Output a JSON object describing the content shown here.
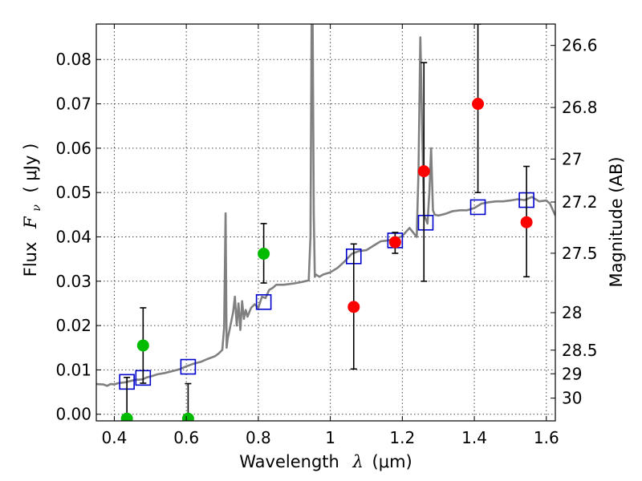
{
  "chart_data": {
    "type": "scatter",
    "xlabel_main": "Wavelength",
    "xlabel_symbol": "λ",
    "xlabel_unit": "(μm)",
    "ylabel_main": "Flux",
    "ylabel_symbol": "F",
    "ylabel_subscript": "ν",
    "ylabel_unit": "( μJy )",
    "y2label": "Magnitude (AB)",
    "xlim": [
      0.35,
      1.625
    ],
    "ylim": [
      -0.0015,
      0.088
    ],
    "grid": true,
    "x_ticks": [
      0.4,
      0.6,
      0.8,
      1.0,
      1.2,
      1.4,
      1.6
    ],
    "x_tick_labels": [
      "0.4",
      "0.6",
      "0.8",
      "1",
      "1.2",
      "1.4",
      "1.6"
    ],
    "y_ticks": [
      0.0,
      0.01,
      0.02,
      0.03,
      0.04,
      0.05,
      0.06,
      0.07,
      0.08
    ],
    "y_tick_labels": [
      "0.00",
      "0.01",
      "0.02",
      "0.03",
      "0.04",
      "0.05",
      "0.06",
      "0.07",
      "0.08"
    ],
    "mag_ticks": [
      26.6,
      26.8,
      27,
      27.2,
      27.5,
      28,
      28.5,
      29,
      30
    ],
    "mag_tick_labels": [
      "26.6",
      "26.8",
      "27",
      "27.2",
      "27.5",
      "28",
      "28.5",
      "29",
      "30"
    ],
    "colors": {
      "model": "#808080",
      "model_phot": "#0000cc",
      "detection": "#ff0000",
      "upper": "#00bb00",
      "errorbar": "#000000",
      "grid": "#444444"
    },
    "series": [
      {
        "kind": "line",
        "x": [
          0.35,
          0.37,
          0.38,
          0.39,
          0.4,
          0.41,
          0.42,
          0.43,
          0.44,
          0.45,
          0.46,
          0.47,
          0.48,
          0.49,
          0.5,
          0.52,
          0.54,
          0.56,
          0.58,
          0.6,
          0.62,
          0.64,
          0.66,
          0.68,
          0.69,
          0.7,
          0.705,
          0.709,
          0.712,
          0.715,
          0.72,
          0.73,
          0.735,
          0.74,
          0.745,
          0.75,
          0.755,
          0.76,
          0.765,
          0.77,
          0.78,
          0.79,
          0.8,
          0.81,
          0.82,
          0.83,
          0.84,
          0.85,
          0.86,
          0.87,
          0.88,
          0.9,
          0.92,
          0.94,
          0.945,
          0.948,
          0.951,
          0.954,
          0.957,
          0.96,
          0.97,
          0.98,
          1.0,
          1.02,
          1.04,
          1.06,
          1.08,
          1.1,
          1.12,
          1.14,
          1.16,
          1.18,
          1.2,
          1.22,
          1.24,
          1.245,
          1.25,
          1.255,
          1.26,
          1.27,
          1.275,
          1.28,
          1.285,
          1.29,
          1.3,
          1.32,
          1.34,
          1.36,
          1.38,
          1.4,
          1.42,
          1.44,
          1.46,
          1.48,
          1.5,
          1.52,
          1.54,
          1.56,
          1.58,
          1.6,
          1.61,
          1.625
        ],
        "y": [
          0.0068,
          0.0067,
          0.0064,
          0.0068,
          0.0067,
          0.007,
          0.0071,
          0.0072,
          0.0074,
          0.0076,
          0.0078,
          0.0078,
          0.0079,
          0.0083,
          0.0085,
          0.009,
          0.0093,
          0.0097,
          0.0101,
          0.0108,
          0.0114,
          0.0118,
          0.0125,
          0.0131,
          0.0137,
          0.0145,
          0.0195,
          0.0453,
          0.015,
          0.017,
          0.019,
          0.023,
          0.0265,
          0.02,
          0.025,
          0.019,
          0.0255,
          0.0215,
          0.0235,
          0.022,
          0.024,
          0.0248,
          0.024,
          0.0265,
          0.0262,
          0.028,
          0.0285,
          0.0292,
          0.0292,
          0.0292,
          0.0293,
          0.0295,
          0.0298,
          0.0302,
          0.04,
          0.088,
          0.088,
          0.045,
          0.031,
          0.0315,
          0.031,
          0.0315,
          0.032,
          0.033,
          0.0345,
          0.0362,
          0.0368,
          0.037,
          0.038,
          0.039,
          0.0392,
          0.0395,
          0.0402,
          0.042,
          0.04,
          0.055,
          0.085,
          0.065,
          0.045,
          0.043,
          0.05,
          0.06,
          0.046,
          0.045,
          0.0448,
          0.0452,
          0.0458,
          0.046,
          0.046,
          0.0465,
          0.0475,
          0.0478,
          0.048,
          0.048,
          0.0482,
          0.0485,
          0.0483,
          0.049,
          0.048,
          0.0482,
          0.0475,
          0.0448
        ],
        "name": ""
      },
      {
        "kind": "squares",
        "x": [
          0.435,
          0.48,
          0.605,
          0.815,
          1.065,
          1.18,
          1.265,
          1.41,
          1.545
        ],
        "y": [
          0.0073,
          0.0082,
          0.0107,
          0.0253,
          0.0356,
          0.0392,
          0.0432,
          0.0467,
          0.0483
        ],
        "name": ""
      },
      {
        "kind": "points",
        "x": [
          0.815,
          0.48
        ],
        "y": [
          0.0362,
          0.0155
        ],
        "err_low": [
          0.0066,
          0.0085
        ],
        "err_high": [
          0.0068,
          0.0085
        ],
        "name": "",
        "color_key": "upper"
      },
      {
        "kind": "points",
        "x": [
          0.435,
          0.605
        ],
        "y": [
          -0.001,
          -0.001
        ],
        "err_low": [
          0.0,
          0.0
        ],
        "err_high": [
          0.0093,
          0.0079
        ],
        "name": "",
        "color_key": "upper"
      },
      {
        "kind": "points",
        "x": [
          1.065,
          1.18,
          1.26,
          1.41,
          1.545
        ],
        "y": [
          0.0242,
          0.0388,
          0.0548,
          0.07,
          0.0433
        ],
        "err_low": [
          0.014,
          0.0025,
          0.0248,
          0.02,
          0.0123
        ],
        "err_high": [
          0.0142,
          0.0022,
          0.0245,
          0.018,
          0.0126
        ],
        "name": "",
        "color_key": "detection"
      }
    ]
  }
}
